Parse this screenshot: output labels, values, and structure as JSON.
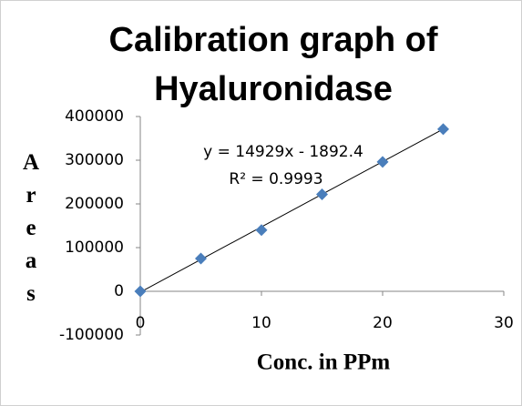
{
  "chart_data": {
    "type": "scatter",
    "title": [
      "Calibration graph of",
      "Hyaluronidase"
    ],
    "x_label": "Conc. in PPm",
    "y_label": "Areas",
    "series": [
      {
        "name": null,
        "color": "#4a7ebb",
        "x": [
          0,
          5,
          10,
          15,
          20,
          25
        ],
        "values": [
          0,
          75000,
          140000,
          222000,
          296000,
          371000
        ]
      }
    ],
    "trendline": {
      "slope": 14929,
      "intercept": -1892.4,
      "label": "y = 14929x - 1892.4",
      "r2_label": "R² = 0.9993"
    },
    "xlim": [
      0,
      30
    ],
    "xticks": [
      0,
      10,
      20,
      30
    ],
    "ylim": [
      -100000,
      400000
    ],
    "yticks": [
      -100000,
      0,
      100000,
      200000,
      300000,
      400000
    ],
    "grid": false
  }
}
